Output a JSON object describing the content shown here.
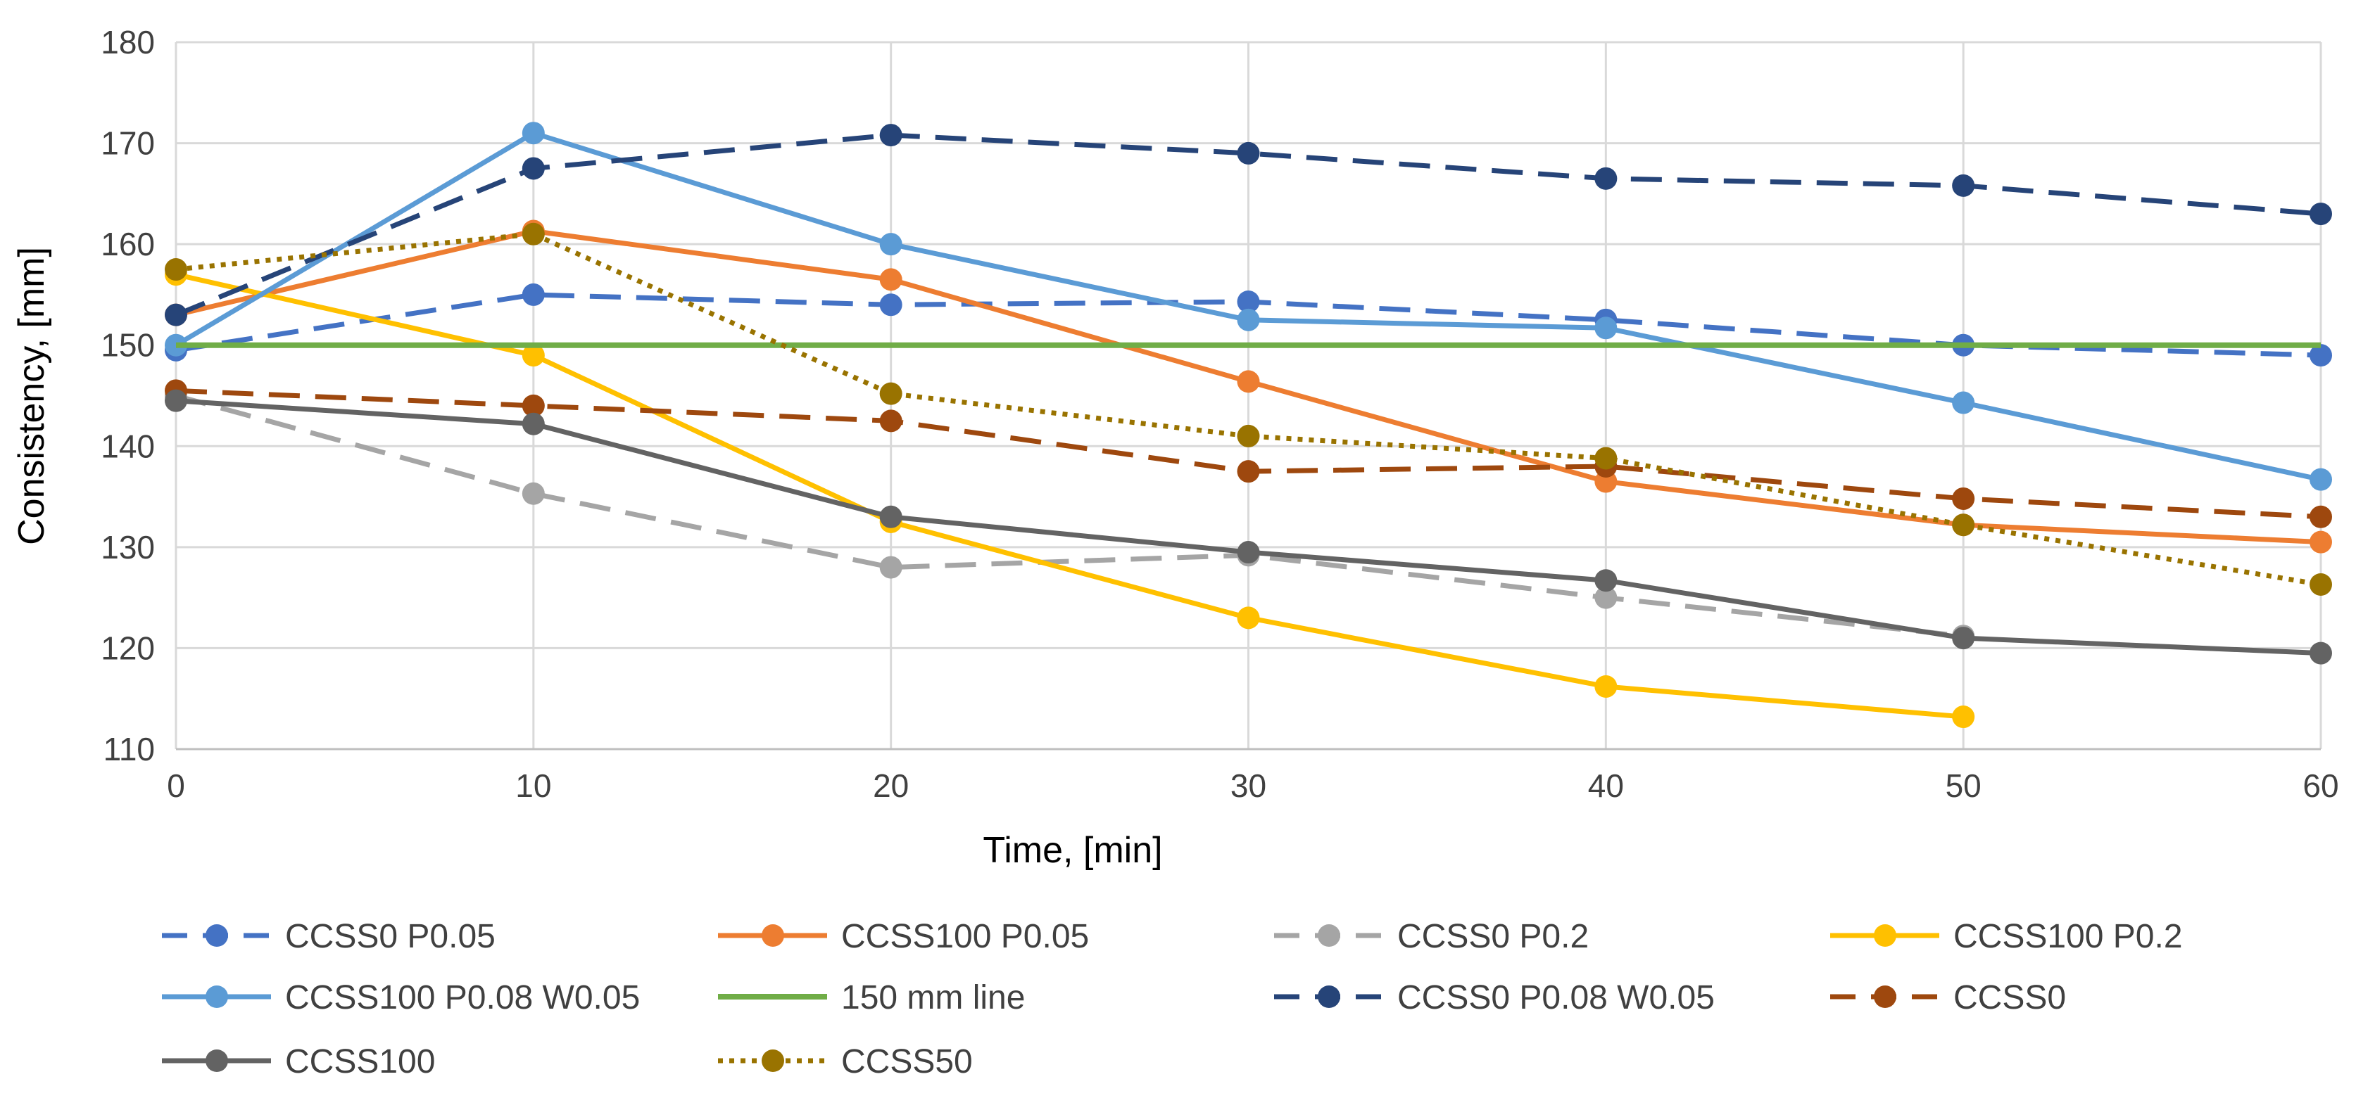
{
  "chart_data": {
    "type": "line",
    "title": "",
    "xlabel": "Time, [min]",
    "ylabel": "Consistency, [mm]",
    "xlim": [
      0,
      60
    ],
    "ylim": [
      110,
      180
    ],
    "xticks": [
      0,
      10,
      20,
      30,
      40,
      50,
      60
    ],
    "yticks": [
      110,
      120,
      130,
      140,
      150,
      160,
      170,
      180
    ],
    "grid": true,
    "legend_position": "bottom",
    "series": [
      {
        "name": "CCSS0 P0.05",
        "color": "#4472C4",
        "dash": "dashed",
        "marker": true,
        "x": [
          0,
          10,
          20,
          30,
          40,
          50,
          60
        ],
        "y": [
          149.5,
          155,
          154,
          154.3,
          152.5,
          150,
          149
        ]
      },
      {
        "name": "CCSS100 P0.05",
        "color": "#ED7D31",
        "dash": "solid",
        "marker": true,
        "x": [
          0,
          10,
          20,
          30,
          40,
          50,
          60
        ],
        "y": [
          153,
          161.3,
          156.5,
          146.4,
          136.5,
          132.2,
          130.5
        ]
      },
      {
        "name": "CCSS0 P0.2",
        "color": "#A5A5A5",
        "dash": "dashed",
        "marker": true,
        "x": [
          0,
          10,
          20,
          30,
          40,
          50
        ],
        "y": [
          145,
          135.3,
          128,
          129.2,
          125,
          121.2
        ]
      },
      {
        "name": "CCSS100 P0.2",
        "color": "#FFC000",
        "dash": "solid",
        "marker": true,
        "x": [
          0,
          10,
          20,
          30,
          40,
          50
        ],
        "y": [
          157,
          149,
          132.5,
          123,
          116.2,
          113.2
        ]
      },
      {
        "name": "CCSS100 P0.08 W0.05",
        "color": "#5B9BD5",
        "dash": "solid",
        "marker": true,
        "x": [
          0,
          10,
          20,
          30,
          40,
          50,
          60
        ],
        "y": [
          150,
          171,
          160,
          152.5,
          151.7,
          144.3,
          136.7
        ]
      },
      {
        "name": "150 mm line",
        "color": "#70AD47",
        "dash": "solid",
        "marker": false,
        "x": [
          0,
          60
        ],
        "y": [
          150,
          150
        ]
      },
      {
        "name": "CCSS0 P0.08 W0.05",
        "color": "#264478",
        "dash": "dashed",
        "marker": true,
        "x": [
          0,
          10,
          20,
          30,
          40,
          50,
          60
        ],
        "y": [
          153,
          167.5,
          170.8,
          169,
          166.5,
          165.8,
          163
        ]
      },
      {
        "name": "CCSS0",
        "color": "#9E480E",
        "dash": "dashed",
        "marker": true,
        "x": [
          0,
          10,
          20,
          30,
          40,
          50,
          60
        ],
        "y": [
          145.5,
          144,
          142.5,
          137.5,
          138,
          134.8,
          133
        ]
      },
      {
        "name": "CCSS100",
        "color": "#636363",
        "dash": "solid",
        "marker": true,
        "x": [
          0,
          10,
          20,
          30,
          40,
          50,
          60
        ],
        "y": [
          144.5,
          142.2,
          133,
          129.5,
          126.7,
          121,
          119.5
        ]
      },
      {
        "name": "CCSS50",
        "color": "#997300",
        "dash": "dotted",
        "marker": true,
        "x": [
          0,
          10,
          20,
          30,
          40,
          50,
          60
        ],
        "y": [
          157.5,
          161,
          145.2,
          141,
          138.8,
          132.2,
          126.3
        ]
      }
    ]
  }
}
